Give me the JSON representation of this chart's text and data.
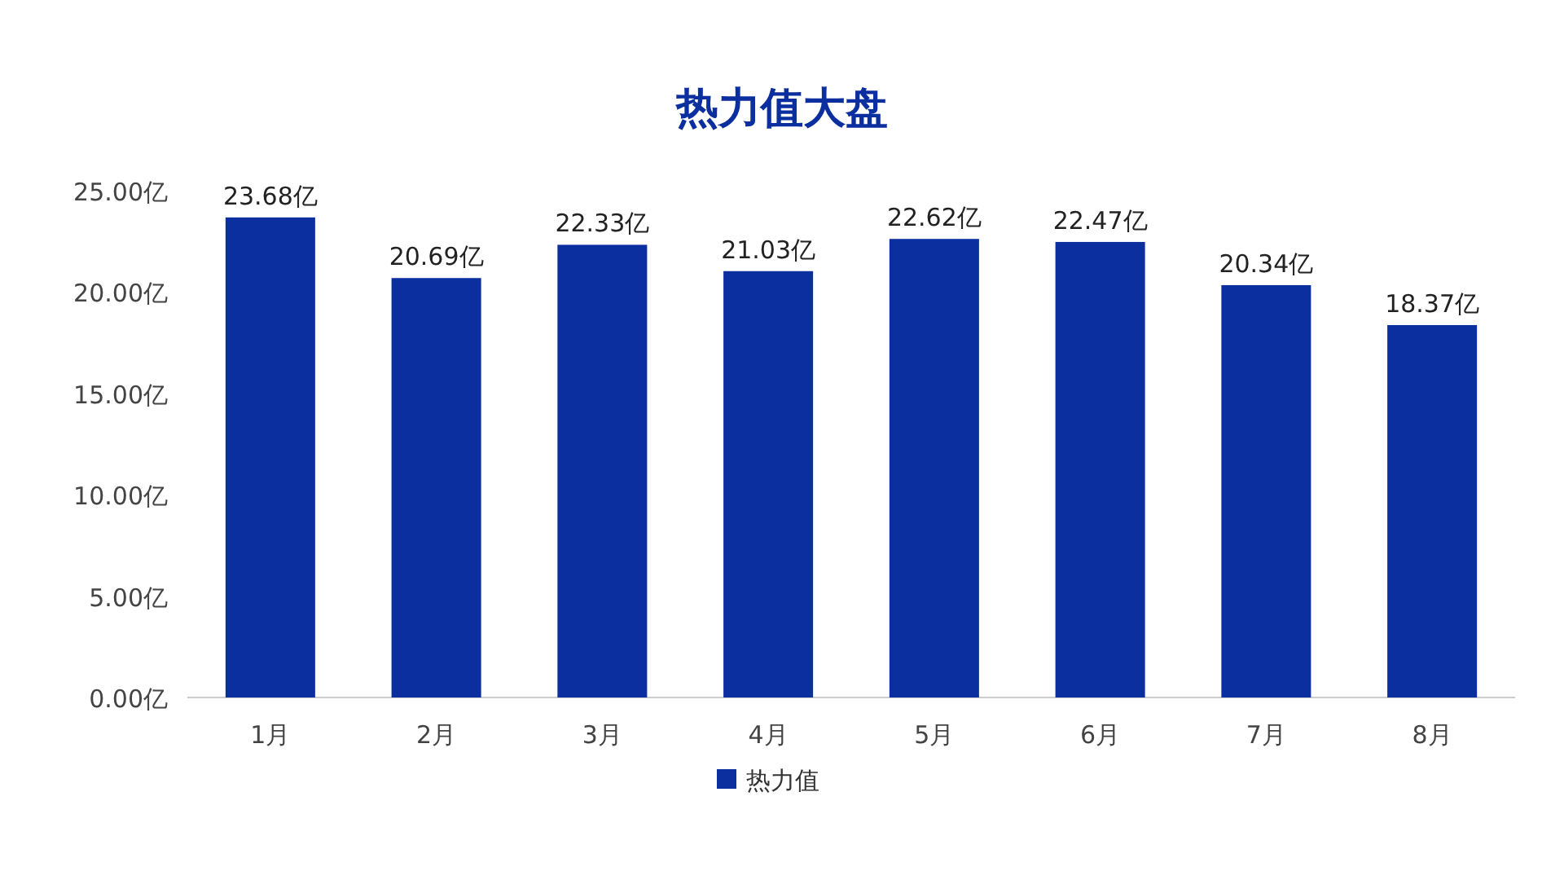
{
  "chart_data": {
    "type": "bar",
    "title": "热力值大盘",
    "categories": [
      "1月",
      "2月",
      "3月",
      "4月",
      "5月",
      "6月",
      "7月",
      "8月"
    ],
    "series": [
      {
        "name": "热力值",
        "color": "#0b2f9f",
        "values": [
          23.68,
          20.69,
          22.33,
          21.03,
          22.62,
          22.47,
          20.34,
          18.37
        ],
        "value_labels": [
          "23.68亿",
          "20.69亿",
          "22.33亿",
          "21.03亿",
          "22.62亿",
          "22.47亿",
          "20.34亿",
          "18.37亿"
        ]
      }
    ],
    "ylim": [
      0,
      25
    ],
    "yticks": [
      {
        "value": 0,
        "label": "0.00亿"
      },
      {
        "value": 5,
        "label": "5.00亿"
      },
      {
        "value": 10,
        "label": "10.00亿"
      },
      {
        "value": 15,
        "label": "15.00亿"
      },
      {
        "value": 20,
        "label": "20.00亿"
      },
      {
        "value": 25,
        "label": "25.00亿"
      }
    ],
    "grid": false,
    "legend": "bottom"
  }
}
